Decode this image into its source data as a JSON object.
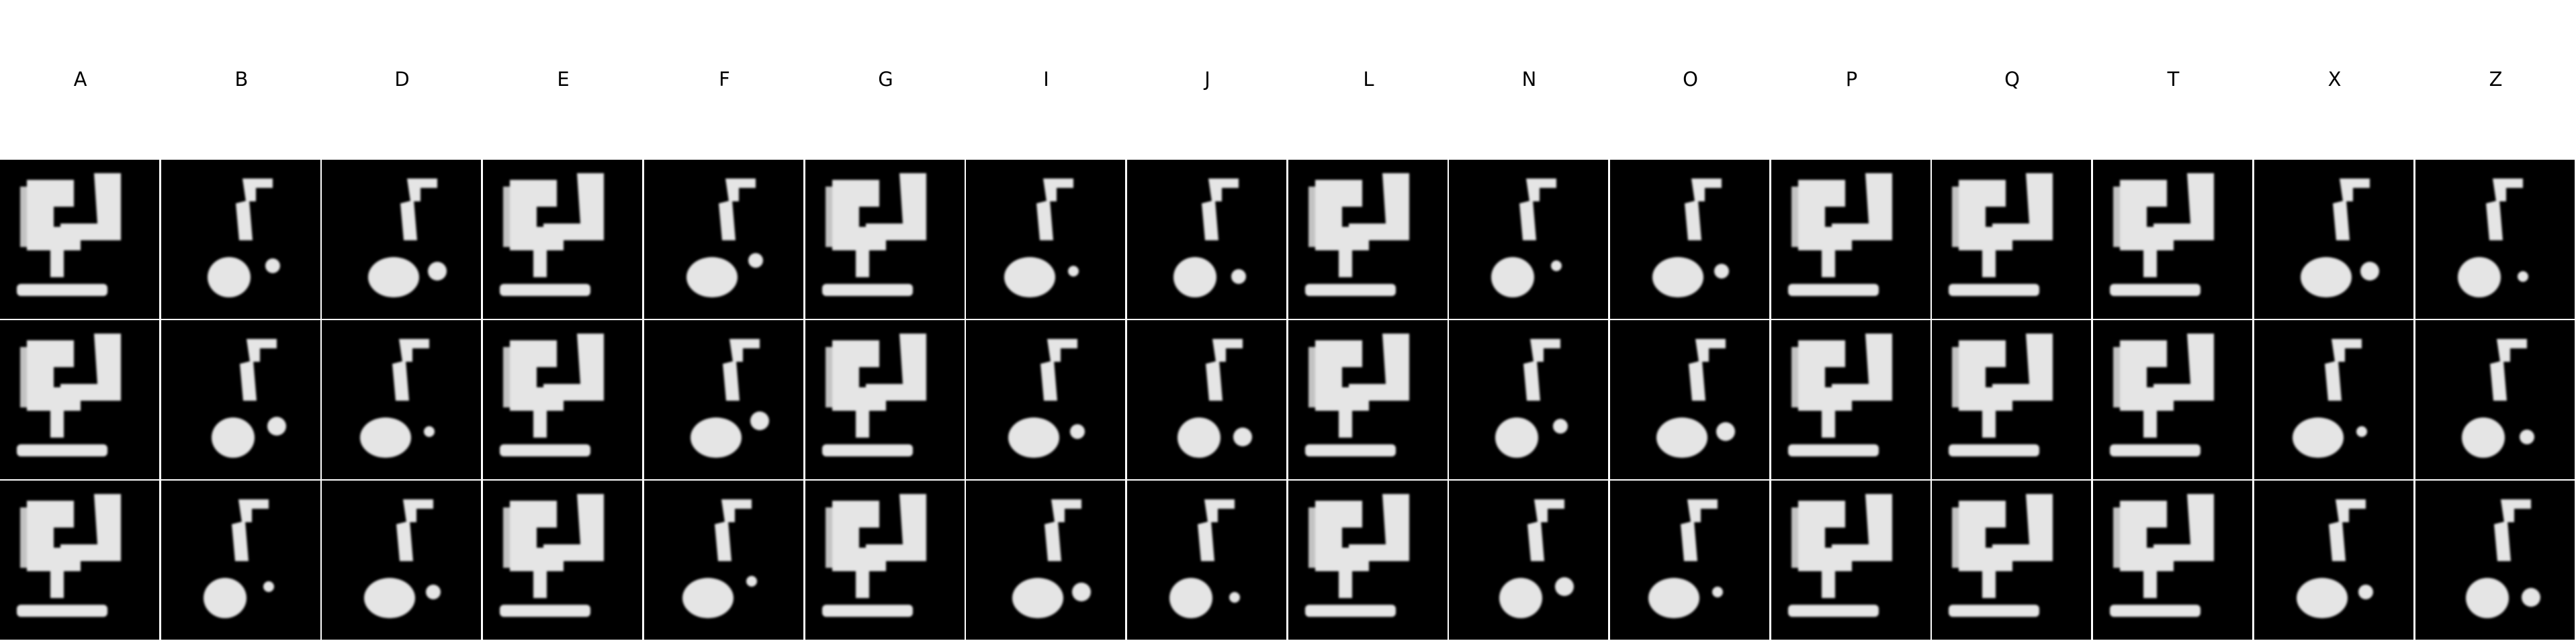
{
  "columns": [
    "A",
    "B",
    "D",
    "E",
    "F",
    "G",
    "I",
    "J",
    "L",
    "N",
    "O",
    "P",
    "Q",
    "T",
    "X",
    "Z"
  ],
  "rows": 3,
  "tiles": [
    [
      "big",
      "small",
      "small",
      "big",
      "small",
      "big",
      "small",
      "small",
      "big",
      "small",
      "small",
      "big",
      "big",
      "big",
      "small",
      "small"
    ],
    [
      "big",
      "small",
      "small",
      "big",
      "small",
      "big",
      "small",
      "small",
      "big",
      "small",
      "small",
      "big",
      "big",
      "big",
      "small",
      "small"
    ],
    [
      "big",
      "small",
      "small",
      "big",
      "small",
      "big",
      "small",
      "small",
      "big",
      "small",
      "small",
      "big",
      "big",
      "big",
      "small",
      "small"
    ]
  ],
  "colors": {
    "background": "#ffffff",
    "tile": "#000000",
    "glyph": "#f2f2f2"
  }
}
